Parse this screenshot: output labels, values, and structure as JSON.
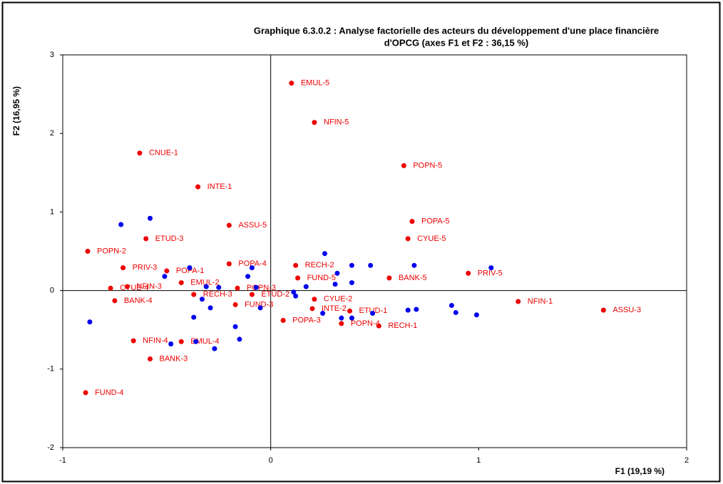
{
  "chart_data": {
    "type": "scatter",
    "title": [
      "Graphique 6.3.0.2 : Analyse factorielle des acteurs du développement d'une place financière",
      "d'OPCG (axes F1 et F2 : 36,15 %)"
    ],
    "xlabel": "F1 (19,19 %)",
    "ylabel": "F2 (16,95 %)",
    "xlim": [
      -1,
      2
    ],
    "ylim": [
      -2,
      3
    ],
    "xticks": [
      -1,
      0,
      1,
      2
    ],
    "yticks": [
      -2,
      -1,
      0,
      1,
      2,
      3
    ],
    "series": [
      {
        "color": "#ee0000",
        "point_labels": [
          "EMUL-5",
          "NFIN-5",
          "CNUE-1",
          "POPN-5",
          "INTE-1",
          "POPA-5",
          "ASSU-5",
          "ETUD-3",
          "CYUE-5",
          "POPN-2",
          "POPA-4",
          "RECH-2",
          "PRIV-3",
          "PRIV-5",
          "POPA-1",
          "FUND-5",
          "BANK-5",
          "EMUL-2",
          "NFIN-3",
          "CYUE-4",
          "BANK-4",
          "RECH-3",
          "NFIN-1",
          "ASSU-3",
          "ETUD-1",
          "POPA-3",
          "POPN-4",
          "RECH-1",
          "NFIN-4",
          "EMUL-4",
          "BANK-3",
          "FUND-4",
          "CYUE-2",
          "INTE-2",
          "POPN-3",
          "ETUD-2",
          "FUND-3"
        ],
        "x": [
          0.1,
          0.21,
          -0.63,
          0.64,
          -0.35,
          0.68,
          -0.2,
          -0.6,
          0.66,
          -0.88,
          -0.2,
          0.12,
          -0.71,
          0.95,
          -0.5,
          0.13,
          0.57,
          -0.43,
          -0.69,
          -0.77,
          -0.75,
          -0.37,
          1.19,
          1.6,
          0.38,
          0.06,
          0.34,
          0.52,
          -0.66,
          -0.43,
          -0.58,
          -0.89,
          0.21,
          0.2,
          -0.16,
          -0.09,
          -0.17
        ],
        "values": [
          2.64,
          2.14,
          1.75,
          1.59,
          1.32,
          0.88,
          0.83,
          0.66,
          0.66,
          0.5,
          0.34,
          0.32,
          0.29,
          0.22,
          0.25,
          0.16,
          0.16,
          0.1,
          0.05,
          0.03,
          -0.13,
          -0.05,
          -0.14,
          -0.25,
          -0.26,
          -0.38,
          -0.42,
          -0.45,
          -0.64,
          -0.65,
          -0.87,
          -1.3,
          -0.11,
          -0.23,
          0.03,
          -0.05,
          -0.18
        ]
      },
      {
        "color": "#0000ee",
        "x": [
          -0.72,
          -0.58,
          0.26,
          0.39,
          0.48,
          0.69,
          1.06,
          -0.39,
          -0.09,
          -0.51,
          -0.11,
          0.32,
          0.31,
          0.17,
          0.39,
          -0.31,
          -0.25,
          -0.07,
          0.11,
          0.12,
          -0.33,
          -0.29,
          -0.05,
          0.25,
          0.34,
          0.39,
          0.49,
          0.66,
          0.7,
          0.87,
          0.89,
          0.99,
          -0.87,
          -0.37,
          -0.17,
          -0.15,
          -0.48,
          -0.36,
          -0.27
        ],
        "values": [
          0.84,
          0.92,
          0.47,
          0.32,
          0.32,
          0.32,
          0.29,
          0.29,
          0.29,
          0.18,
          0.18,
          0.22,
          0.08,
          0.05,
          0.1,
          0.05,
          0.04,
          0.04,
          -0.02,
          -0.07,
          -0.11,
          -0.22,
          -0.22,
          -0.29,
          -0.35,
          -0.35,
          -0.29,
          -0.25,
          -0.24,
          -0.19,
          -0.28,
          -0.31,
          -0.4,
          -0.34,
          -0.46,
          -0.62,
          -0.68,
          -0.65,
          -0.74
        ]
      }
    ]
  }
}
